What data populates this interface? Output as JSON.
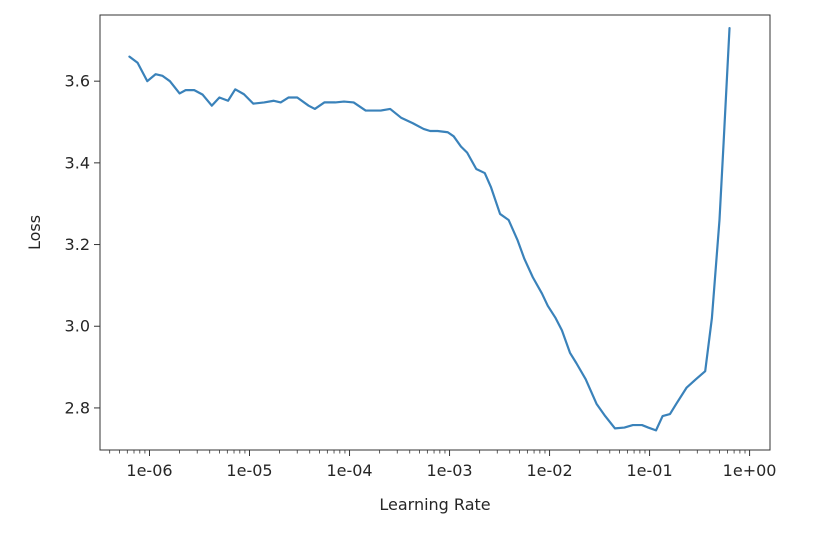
{
  "chart_data": {
    "type": "line",
    "title": "",
    "xlabel": "Learning Rate",
    "ylabel": "Loss",
    "xscale": "log",
    "xlim": [
      3.2e-07,
      1.6
    ],
    "ylim": [
      2.697,
      3.762
    ],
    "grid": false,
    "legend": "none",
    "line_color": "#3a82ba",
    "x_ticks": [
      {
        "value": 1e-06,
        "label": "1e-06"
      },
      {
        "value": 1e-05,
        "label": "1e-05"
      },
      {
        "value": 0.0001,
        "label": "1e-04"
      },
      {
        "value": 0.001,
        "label": "1e-03"
      },
      {
        "value": 0.01,
        "label": "1e-02"
      },
      {
        "value": 0.1,
        "label": "1e-01"
      },
      {
        "value": 1,
        "label": "1e+00"
      }
    ],
    "y_ticks": [
      {
        "value": 2.8,
        "label": "2.8"
      },
      {
        "value": 3.0,
        "label": "3.0"
      },
      {
        "value": 3.2,
        "label": "3.2"
      },
      {
        "value": 3.4,
        "label": "3.4"
      },
      {
        "value": 3.6,
        "label": "3.6"
      }
    ],
    "series": [
      {
        "x": [
          6.3e-07,
          7.6e-07,
          9.5e-07,
          1.15e-06,
          1.35e-06,
          1.6e-06,
          2e-06,
          2.3e-06,
          2.8e-06,
          3.4e-06,
          4.2e-06,
          5e-06,
          6.1e-06,
          7.2e-06,
          8.8e-06,
          1.09e-05,
          1.4e-05,
          1.75e-05,
          2.05e-05,
          2.45e-05,
          3e-05,
          3.9e-05,
          4.5e-05,
          5.6e-05,
          7.2e-05,
          8.8e-05,
          0.00011,
          0.000145,
          0.000185,
          0.000205,
          0.000255,
          0.00033,
          0.00043,
          0.00055,
          0.00064,
          0.00076,
          0.00096,
          0.0011,
          0.0013,
          0.0015,
          0.00185,
          0.00225,
          0.0026,
          0.0032,
          0.0039,
          0.0048,
          0.0056,
          0.0068,
          0.0084,
          0.0096,
          0.0115,
          0.0133,
          0.016,
          0.0185,
          0.023,
          0.0295,
          0.036,
          0.045,
          0.056,
          0.068,
          0.084,
          0.097,
          0.116,
          0.135,
          0.16,
          0.185,
          0.235,
          0.29,
          0.36,
          0.42,
          0.5,
          0.55,
          0.63
        ],
        "y": [
          3.66,
          3.645,
          3.6,
          3.617,
          3.613,
          3.6,
          3.57,
          3.578,
          3.578,
          3.567,
          3.54,
          3.56,
          3.552,
          3.58,
          3.568,
          3.545,
          3.548,
          3.552,
          3.548,
          3.56,
          3.56,
          3.54,
          3.532,
          3.548,
          3.548,
          3.55,
          3.548,
          3.528,
          3.528,
          3.528,
          3.532,
          3.51,
          3.497,
          3.483,
          3.478,
          3.478,
          3.475,
          3.465,
          3.44,
          3.425,
          3.385,
          3.375,
          3.34,
          3.275,
          3.26,
          3.21,
          3.165,
          3.12,
          3.08,
          3.05,
          3.02,
          2.99,
          2.935,
          2.91,
          2.87,
          2.81,
          2.78,
          2.75,
          2.752,
          2.758,
          2.758,
          2.752,
          2.745,
          2.78,
          2.785,
          2.81,
          2.85,
          2.87,
          2.89,
          3.02,
          3.26,
          3.45,
          3.73
        ]
      }
    ]
  }
}
